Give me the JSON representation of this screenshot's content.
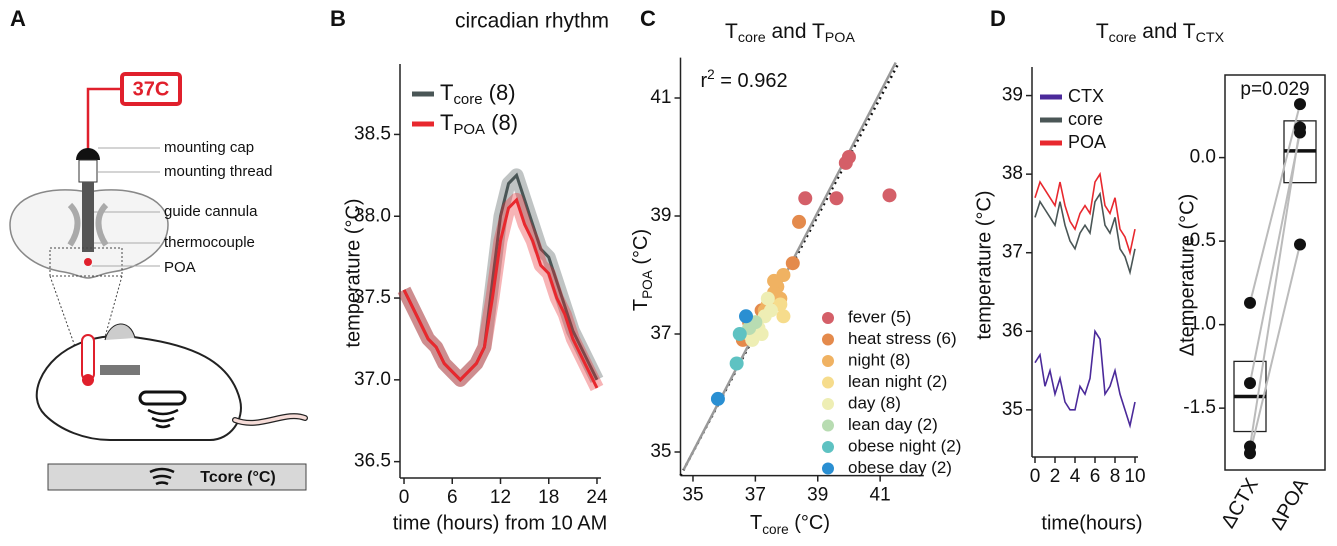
{
  "diagram": {
    "panel": "A",
    "display": "37C",
    "labels": [
      "mounting cap",
      "mounting thread",
      "guide cannula",
      "thermocouple",
      "POA"
    ],
    "plate_label": "Tcore (°C)"
  },
  "chart_data": [
    {
      "type": "line",
      "panel": "B",
      "title": "circadian rhythm",
      "xlabel": "time (hours) from 10 AM",
      "ylabel": "temperature (°C)",
      "x": [
        0,
        1,
        2,
        3,
        4,
        5,
        6,
        7,
        8,
        9,
        10,
        11,
        12,
        13,
        14,
        15,
        16,
        17,
        18,
        19,
        20,
        21,
        22,
        23,
        24
      ],
      "xlim": [
        -0.5,
        24.5
      ],
      "xticks": [
        0,
        6,
        12,
        18,
        24
      ],
      "ylim": [
        36.4,
        38.9
      ],
      "yticks": [
        36.5,
        {
          "value": 37,
          "label": "37.0"
        },
        37.5,
        {
          "value": 38,
          "label": "38.0"
        },
        38.5
      ],
      "band": true,
      "legend": "upper left",
      "series": [
        {
          "name": [
            {
              "text": "T"
            },
            {
              "text": "core",
              "sub": true
            },
            {
              "text": " (8)"
            }
          ],
          "color": "#4a5656",
          "values": [
            37.55,
            37.45,
            37.35,
            37.25,
            37.2,
            37.1,
            37.05,
            37.0,
            37.05,
            37.1,
            37.2,
            37.6,
            38.0,
            38.2,
            38.25,
            38.1,
            37.95,
            37.8,
            37.75,
            37.6,
            37.45,
            37.3,
            37.2,
            37.1,
            37.0
          ]
        },
        {
          "name": [
            {
              "text": "T"
            },
            {
              "text": "POA",
              "sub": true
            },
            {
              "text": " (8)"
            }
          ],
          "color": "#e8282e",
          "values": [
            37.55,
            37.45,
            37.35,
            37.25,
            37.2,
            37.1,
            37.05,
            37.0,
            37.05,
            37.1,
            37.2,
            37.5,
            37.85,
            38.05,
            38.1,
            37.95,
            37.85,
            37.7,
            37.65,
            37.5,
            37.4,
            37.25,
            37.15,
            37.05,
            36.95
          ]
        }
      ]
    },
    {
      "type": "scatter",
      "panel": "C",
      "title": [
        {
          "text": "T"
        },
        {
          "text": "core",
          "sub": true
        },
        {
          "text": " and T"
        },
        {
          "text": "POA",
          "sub": true
        }
      ],
      "xlabel": [
        {
          "text": "T"
        },
        {
          "text": "core",
          "sub": true
        },
        {
          "text": " (°C)"
        }
      ],
      "ylabel": [
        {
          "text": "T"
        },
        {
          "text": "POA",
          "sub": true
        },
        {
          "text": " (°C)"
        }
      ],
      "annotation": [
        {
          "text": "r"
        },
        {
          "text": "2",
          "sup": true
        },
        {
          "text": " = 0.962"
        }
      ],
      "xlim": [
        34.6,
        42.4
      ],
      "xticks": [
        35,
        37,
        39,
        41
      ],
      "ylim": [
        34.6,
        41.6
      ],
      "yticks": [
        35,
        37,
        39,
        41
      ],
      "identity_line": true,
      "fit_line": {
        "x": [
          34.7,
          41.5
        ],
        "y": [
          34.7,
          41.6
        ]
      },
      "legend": "lower right",
      "series": [
        {
          "name": "fever (5)",
          "color": "#d45f68",
          "x": [
            38.6,
            39.6,
            39.9,
            40.0,
            41.3
          ],
          "values": [
            39.3,
            39.3,
            39.9,
            40.0,
            39.35
          ]
        },
        {
          "name": "heat stress (6)",
          "color": "#e48a4c",
          "x": [
            38.2,
            38.4,
            37.7,
            37.2,
            36.8,
            36.6
          ],
          "values": [
            38.2,
            38.9,
            37.8,
            37.4,
            37.2,
            36.9
          ]
        },
        {
          "name": "night (8)",
          "color": "#f0b262",
          "x": [
            37.5,
            37.7,
            37.9,
            37.6,
            37.3,
            37.8,
            37.4,
            37.6
          ],
          "values": [
            37.6,
            37.8,
            38.0,
            37.7,
            37.4,
            37.6,
            37.5,
            37.9
          ]
        },
        {
          "name": "lean night (2)",
          "color": "#f6dc8c",
          "x": [
            37.9,
            37.8
          ],
          "values": [
            37.3,
            37.5
          ]
        },
        {
          "name": "day (8)",
          "color": "#eeeeb4",
          "x": [
            37.3,
            37.0,
            37.1,
            36.9,
            37.5,
            37.2,
            37.4,
            36.8
          ],
          "values": [
            37.3,
            37.2,
            37.1,
            36.9,
            37.4,
            37.0,
            37.6,
            37.0
          ]
        },
        {
          "name": "lean day (2)",
          "color": "#b8dcb2",
          "x": [
            37.0,
            36.8
          ],
          "values": [
            37.2,
            37.1
          ]
        },
        {
          "name": "obese night (2)",
          "color": "#5ec2c2",
          "x": [
            36.5,
            36.4
          ],
          "values": [
            37.0,
            36.5
          ]
        },
        {
          "name": "obese day (2)",
          "color": "#2a8fd2",
          "x": [
            35.8,
            36.7
          ],
          "values": [
            35.9,
            37.3
          ]
        }
      ]
    },
    {
      "type": "line",
      "panel": "D",
      "title": [
        {
          "text": "T"
        },
        {
          "text": "core",
          "sub": true
        },
        {
          "text": " and T"
        },
        {
          "text": "CTX",
          "sub": true
        }
      ],
      "xlabel": "time(hours)",
      "ylabel": "temperature (°C)",
      "x": [
        0,
        0.5,
        1,
        1.5,
        2,
        2.5,
        3,
        3.5,
        4,
        4.5,
        5,
        5.5,
        6,
        6.5,
        7,
        7.5,
        8,
        8.5,
        9,
        9.5,
        10
      ],
      "xlim": [
        -0.3,
        10.3
      ],
      "xticks": [
        0,
        2,
        4,
        6,
        8,
        10
      ],
      "ylim": [
        34.4,
        39.3
      ],
      "yticks": [
        35,
        36,
        37,
        38,
        39
      ],
      "legend": "upper left",
      "series": [
        {
          "name": "CTX",
          "color": "#4b2a9a",
          "values": [
            35.6,
            35.7,
            35.3,
            35.5,
            35.2,
            35.4,
            35.1,
            35.0,
            35.0,
            35.3,
            35.2,
            35.4,
            36.0,
            35.9,
            35.2,
            35.3,
            35.5,
            35.2,
            35.0,
            34.8,
            35.1
          ]
        },
        {
          "name": "core",
          "color": "#4a5656",
          "values": [
            37.45,
            37.65,
            37.55,
            37.45,
            37.35,
            37.65,
            37.35,
            37.15,
            37.05,
            37.25,
            37.35,
            37.25,
            37.65,
            37.75,
            37.35,
            37.25,
            37.45,
            37.05,
            36.95,
            36.75,
            37.05
          ]
        },
        {
          "name": "POA",
          "color": "#e8282e",
          "values": [
            37.7,
            37.9,
            37.8,
            37.7,
            37.6,
            37.9,
            37.6,
            37.4,
            37.3,
            37.5,
            37.6,
            37.5,
            37.9,
            38.0,
            37.6,
            37.5,
            37.7,
            37.3,
            37.2,
            37.0,
            37.3
          ]
        }
      ]
    },
    {
      "type": "box",
      "annotation": "p=0.029",
      "ylabel": "Δtemperature (°C)",
      "categories": [
        "ΔCTX",
        "ΔPOA"
      ],
      "ylim": [
        -1.85,
        0.4
      ],
      "yticks": [
        {
          "value": 0,
          "label": "0.0"
        },
        -0.5,
        {
          "value": -1,
          "label": "-1.0"
        },
        -1.5
      ],
      "boxes": [
        {
          "q1": -1.64,
          "median": -1.43,
          "q3": -1.22
        },
        {
          "q1": -0.15,
          "median": 0.04,
          "q3": 0.22
        }
      ],
      "values": [
        [
          -0.87,
          -1.35,
          -1.73,
          -1.77
        ],
        [
          0.32,
          0.15,
          0.18,
          -0.52
        ]
      ]
    }
  ]
}
